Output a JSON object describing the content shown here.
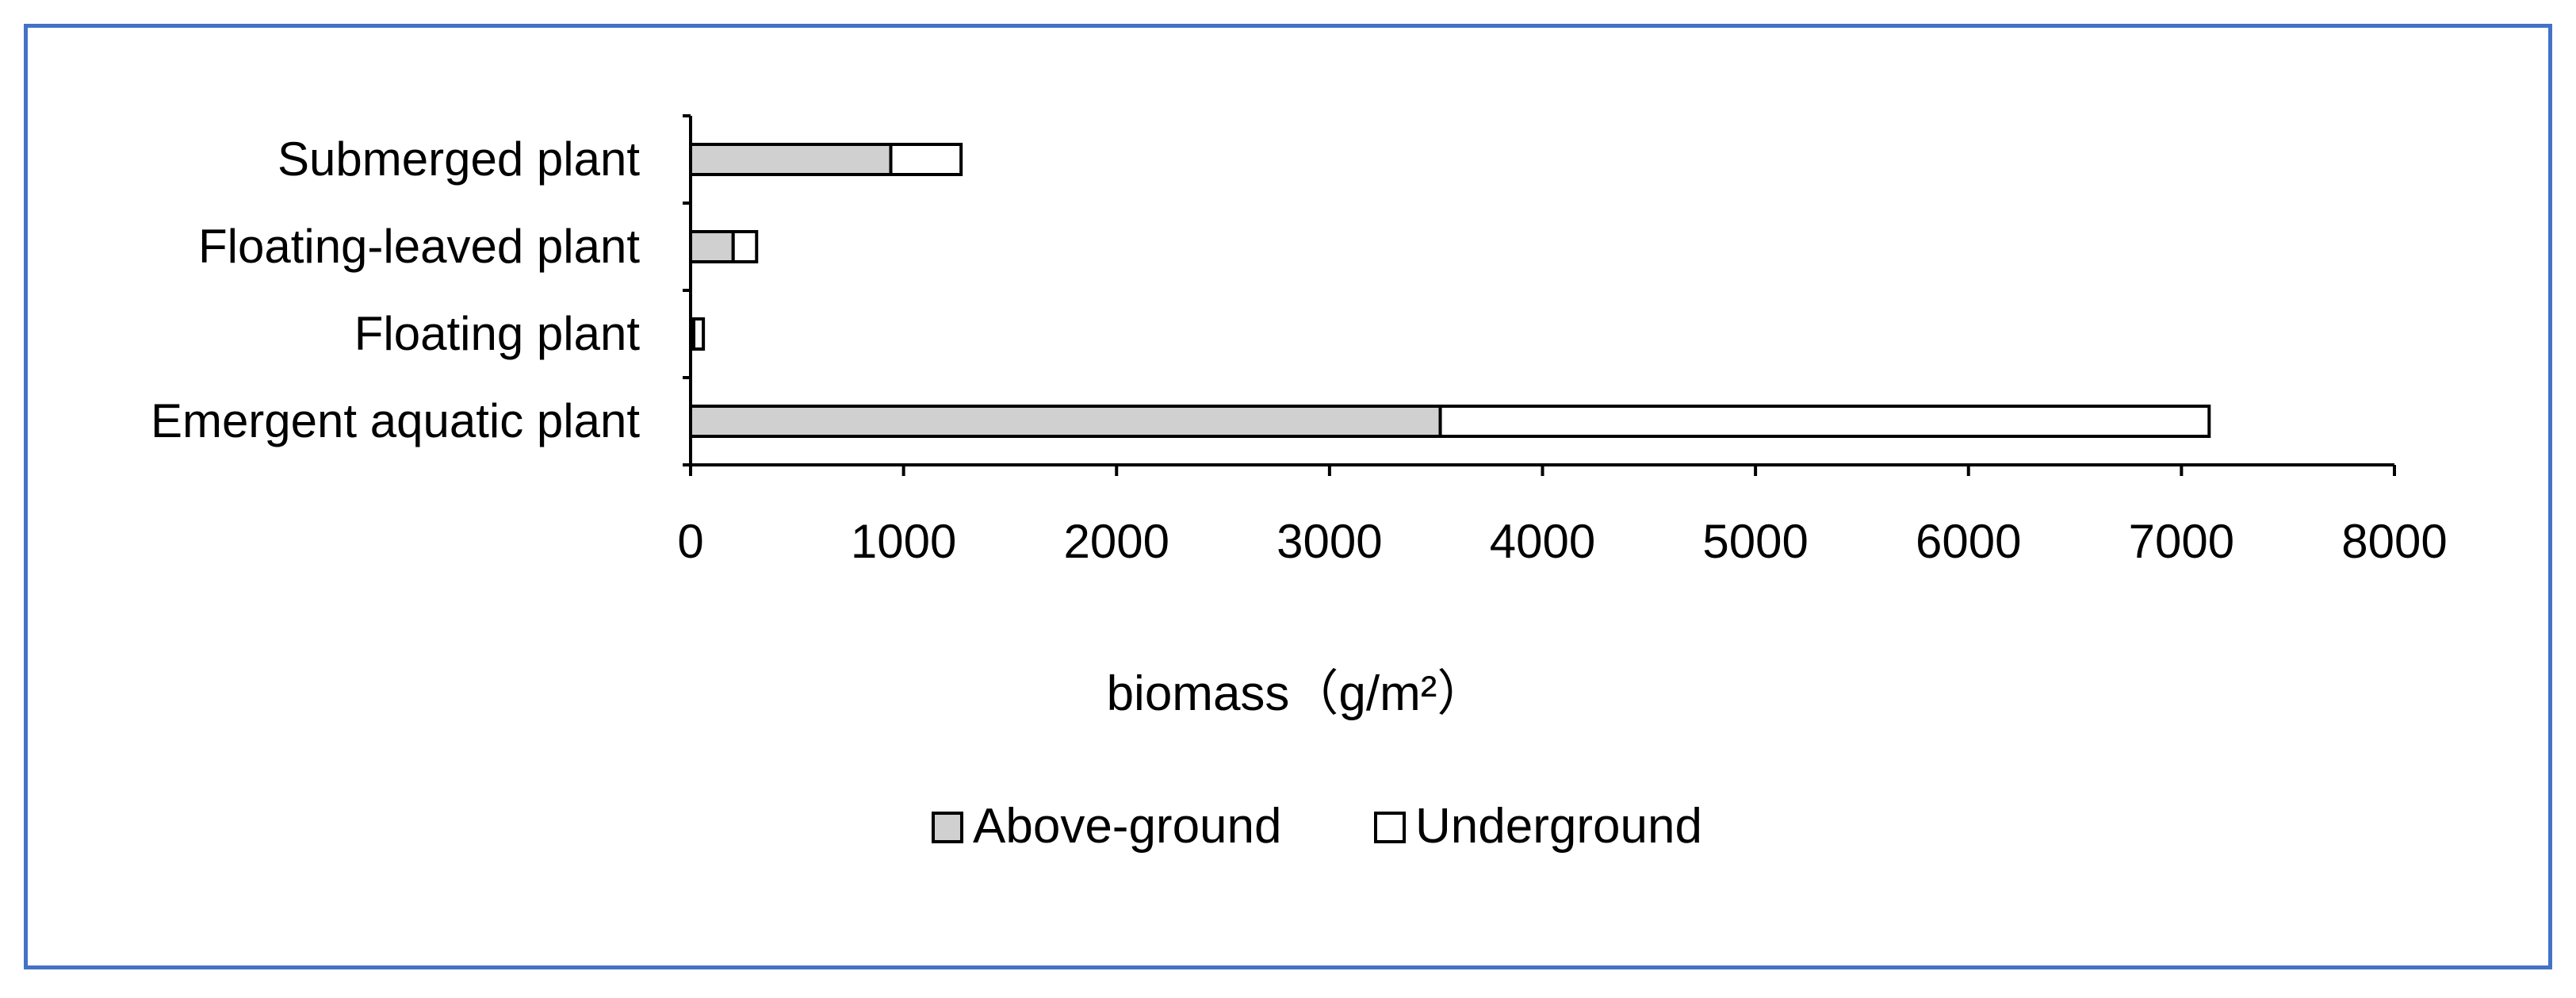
{
  "chart_data": {
    "type": "bar",
    "orientation": "horizontal",
    "stacked": true,
    "categories": [
      "Emergent aquatic plant",
      "Floating plant",
      "Floating-leaved plant",
      "Submerged plant"
    ],
    "series": [
      {
        "name": "Above-ground",
        "values": [
          3520,
          15,
          200,
          940
        ],
        "color": "#D0D0D0"
      },
      {
        "name": "Underground",
        "values": [
          3610,
          45,
          110,
          330
        ],
        "color": "#FFFFFF"
      }
    ],
    "xlabel": "biomass（g/m²）",
    "xlim": [
      0,
      8000
    ],
    "xticks": [
      0,
      1000,
      2000,
      3000,
      4000,
      5000,
      6000,
      7000,
      8000
    ],
    "grid": false,
    "legend_position": "bottom"
  }
}
